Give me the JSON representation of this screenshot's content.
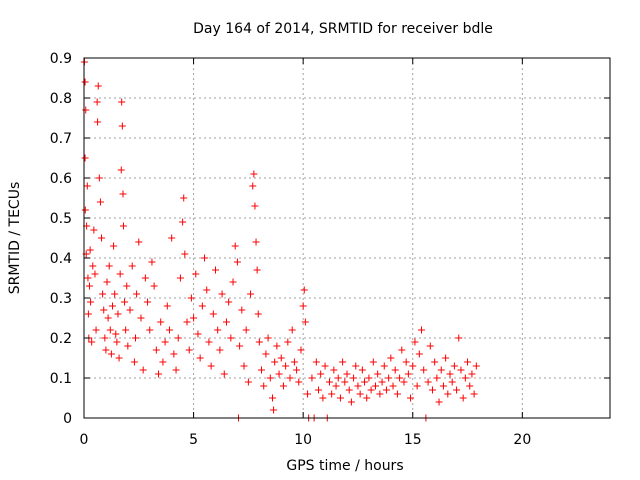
{
  "chart_data": {
    "type": "scatter",
    "title": "Day 164 of 2014, SRMTID for receiver bdle",
    "xlabel": "GPS time / hours",
    "ylabel": "SRMTID / TECUs",
    "xlim": [
      0,
      24
    ],
    "ylim": [
      0,
      0.9
    ],
    "xticks": [
      0,
      5,
      10,
      15,
      20
    ],
    "xtick_labels": [
      "0",
      "5",
      "10",
      "15",
      "20"
    ],
    "yticks": [
      0,
      0.1,
      0.2,
      0.3,
      0.4,
      0.5,
      0.6,
      0.7,
      0.8,
      0.9
    ],
    "ytick_labels": [
      "0",
      "0.1",
      "0.2",
      "0.3",
      "0.4",
      "0.5",
      "0.6",
      "0.7",
      "0.8",
      "0.9"
    ],
    "grid": true,
    "marker": "+",
    "color": "#ff0000",
    "series": [
      {
        "name": "SRMTID",
        "points": [
          [
            0.02,
            0.89
          ],
          [
            0.05,
            0.84
          ],
          [
            0.05,
            0.65
          ],
          [
            0.06,
            0.52
          ],
          [
            0.08,
            0.77
          ],
          [
            0.1,
            0.41
          ],
          [
            0.12,
            0.48
          ],
          [
            0.15,
            0.58
          ],
          [
            0.18,
            0.35
          ],
          [
            0.2,
            0.26
          ],
          [
            0.22,
            0.2
          ],
          [
            0.25,
            0.33
          ],
          [
            0.28,
            0.42
          ],
          [
            0.3,
            0.29
          ],
          [
            0.35,
            0.19
          ],
          [
            0.4,
            0.38
          ],
          [
            0.45,
            0.47
          ],
          [
            0.5,
            0.36
          ],
          [
            0.55,
            0.22
          ],
          [
            0.6,
            0.79
          ],
          [
            0.62,
            0.74
          ],
          [
            0.65,
            0.83
          ],
          [
            0.7,
            0.6
          ],
          [
            0.75,
            0.54
          ],
          [
            0.8,
            0.45
          ],
          [
            0.85,
            0.31
          ],
          [
            0.9,
            0.27
          ],
          [
            0.95,
            0.2
          ],
          [
            1.0,
            0.17
          ],
          [
            1.05,
            0.34
          ],
          [
            1.1,
            0.25
          ],
          [
            1.15,
            0.38
          ],
          [
            1.2,
            0.22
          ],
          [
            1.25,
            0.16
          ],
          [
            1.3,
            0.28
          ],
          [
            1.35,
            0.43
          ],
          [
            1.4,
            0.31
          ],
          [
            1.45,
            0.21
          ],
          [
            1.5,
            0.19
          ],
          [
            1.55,
            0.26
          ],
          [
            1.6,
            0.15
          ],
          [
            1.65,
            0.36
          ],
          [
            1.7,
            0.62
          ],
          [
            1.72,
            0.79
          ],
          [
            1.75,
            0.73
          ],
          [
            1.78,
            0.56
          ],
          [
            1.8,
            0.48
          ],
          [
            1.85,
            0.29
          ],
          [
            1.9,
            0.22
          ],
          [
            1.95,
            0.33
          ],
          [
            2.0,
            0.18
          ],
          [
            2.1,
            0.27
          ],
          [
            2.2,
            0.38
          ],
          [
            2.3,
            0.14
          ],
          [
            2.35,
            0.2
          ],
          [
            2.4,
            0.31
          ],
          [
            2.5,
            0.44
          ],
          [
            2.6,
            0.25
          ],
          [
            2.7,
            0.12
          ],
          [
            2.8,
            0.35
          ],
          [
            2.9,
            0.29
          ],
          [
            3.0,
            0.22
          ],
          [
            3.1,
            0.39
          ],
          [
            3.2,
            0.33
          ],
          [
            3.3,
            0.17
          ],
          [
            3.4,
            0.11
          ],
          [
            3.5,
            0.24
          ],
          [
            3.6,
            0.14
          ],
          [
            3.7,
            0.19
          ],
          [
            3.8,
            0.28
          ],
          [
            3.9,
            0.22
          ],
          [
            4.0,
            0.45
          ],
          [
            4.1,
            0.16
          ],
          [
            4.2,
            0.12
          ],
          [
            4.3,
            0.2
          ],
          [
            4.4,
            0.35
          ],
          [
            4.5,
            0.49
          ],
          [
            4.55,
            0.55
          ],
          [
            4.6,
            0.41
          ],
          [
            4.7,
            0.24
          ],
          [
            4.8,
            0.17
          ],
          [
            4.9,
            0.3
          ],
          [
            5.0,
            0.25
          ],
          [
            5.1,
            0.36
          ],
          [
            5.2,
            0.21
          ],
          [
            5.3,
            0.15
          ],
          [
            5.4,
            0.28
          ],
          [
            5.5,
            0.4
          ],
          [
            5.6,
            0.32
          ],
          [
            5.7,
            0.19
          ],
          [
            5.8,
            0.13
          ],
          [
            5.9,
            0.26
          ],
          [
            6.0,
            0.37
          ],
          [
            6.1,
            0.22
          ],
          [
            6.2,
            0.17
          ],
          [
            6.3,
            0.31
          ],
          [
            6.4,
            0.11
          ],
          [
            6.5,
            0.24
          ],
          [
            6.6,
            0.29
          ],
          [
            6.7,
            0.2
          ],
          [
            6.8,
            0.34
          ],
          [
            6.9,
            0.43
          ],
          [
            7.0,
            0.39
          ],
          [
            7.05,
            0.0
          ],
          [
            7.1,
            0.18
          ],
          [
            7.2,
            0.27
          ],
          [
            7.3,
            0.13
          ],
          [
            7.4,
            0.22
          ],
          [
            7.5,
            0.09
          ],
          [
            7.6,
            0.31
          ],
          [
            7.7,
            0.58
          ],
          [
            7.75,
            0.61
          ],
          [
            7.8,
            0.53
          ],
          [
            7.85,
            0.44
          ],
          [
            7.9,
            0.37
          ],
          [
            7.95,
            0.26
          ],
          [
            8.0,
            0.19
          ],
          [
            8.1,
            0.12
          ],
          [
            8.2,
            0.08
          ],
          [
            8.3,
            0.16
          ],
          [
            8.4,
            0.2
          ],
          [
            8.5,
            0.1
          ],
          [
            8.6,
            0.05
          ],
          [
            8.65,
            0.02
          ],
          [
            8.7,
            0.14
          ],
          [
            8.8,
            0.18
          ],
          [
            8.9,
            0.11
          ],
          [
            9.0,
            0.15
          ],
          [
            9.1,
            0.08
          ],
          [
            9.2,
            0.13
          ],
          [
            9.3,
            0.19
          ],
          [
            9.4,
            0.1
          ],
          [
            9.5,
            0.22
          ],
          [
            9.6,
            0.14
          ],
          [
            9.7,
            0.12
          ],
          [
            9.8,
            0.09
          ],
          [
            9.9,
            0.17
          ],
          [
            10.0,
            0.28
          ],
          [
            10.05,
            0.32
          ],
          [
            10.1,
            0.24
          ],
          [
            10.2,
            0.06
          ],
          [
            10.25,
            0.0
          ],
          [
            10.4,
            0.1
          ],
          [
            10.5,
            0.0
          ],
          [
            10.6,
            0.14
          ],
          [
            10.7,
            0.07
          ],
          [
            10.8,
            0.11
          ],
          [
            10.9,
            0.05
          ],
          [
            11.0,
            0.13
          ],
          [
            11.1,
            0.0
          ],
          [
            11.2,
            0.09
          ],
          [
            11.3,
            0.06
          ],
          [
            11.4,
            0.12
          ],
          [
            11.5,
            0.08
          ],
          [
            11.6,
            0.1
          ],
          [
            11.7,
            0.05
          ],
          [
            11.8,
            0.14
          ],
          [
            11.9,
            0.09
          ],
          [
            12.0,
            0.11
          ],
          [
            12.1,
            0.07
          ],
          [
            12.2,
            0.04
          ],
          [
            12.3,
            0.1
          ],
          [
            12.4,
            0.13
          ],
          [
            12.5,
            0.08
          ],
          [
            12.6,
            0.06
          ],
          [
            12.7,
            0.12
          ],
          [
            12.8,
            0.09
          ],
          [
            12.9,
            0.05
          ],
          [
            13.0,
            0.1
          ],
          [
            13.1,
            0.07
          ],
          [
            13.2,
            0.14
          ],
          [
            13.3,
            0.08
          ],
          [
            13.4,
            0.11
          ],
          [
            13.5,
            0.06
          ],
          [
            13.6,
            0.09
          ],
          [
            13.7,
            0.13
          ],
          [
            13.8,
            0.07
          ],
          [
            13.9,
            0.1
          ],
          [
            14.0,
            0.15
          ],
          [
            14.1,
            0.08
          ],
          [
            14.2,
            0.12
          ],
          [
            14.3,
            0.06
          ],
          [
            14.4,
            0.1
          ],
          [
            14.5,
            0.17
          ],
          [
            14.6,
            0.09
          ],
          [
            14.7,
            0.14
          ],
          [
            14.8,
            0.11
          ],
          [
            14.9,
            0.05
          ],
          [
            15.0,
            0.13
          ],
          [
            15.1,
            0.19
          ],
          [
            15.2,
            0.08
          ],
          [
            15.3,
            0.16
          ],
          [
            15.4,
            0.22
          ],
          [
            15.5,
            0.12
          ],
          [
            15.6,
            0.0
          ],
          [
            15.7,
            0.09
          ],
          [
            15.8,
            0.18
          ],
          [
            15.9,
            0.07
          ],
          [
            16.0,
            0.14
          ],
          [
            16.1,
            0.1
          ],
          [
            16.2,
            0.04
          ],
          [
            16.3,
            0.12
          ],
          [
            16.4,
            0.08
          ],
          [
            16.5,
            0.15
          ],
          [
            16.6,
            0.06
          ],
          [
            16.7,
            0.11
          ],
          [
            16.8,
            0.09
          ],
          [
            16.9,
            0.13
          ],
          [
            17.0,
            0.07
          ],
          [
            17.1,
            0.2
          ],
          [
            17.2,
            0.12
          ],
          [
            17.3,
            0.05
          ],
          [
            17.4,
            0.1
          ],
          [
            17.5,
            0.14
          ],
          [
            17.6,
            0.08
          ],
          [
            17.7,
            0.11
          ],
          [
            17.8,
            0.06
          ],
          [
            17.9,
            0.13
          ]
        ]
      }
    ]
  }
}
